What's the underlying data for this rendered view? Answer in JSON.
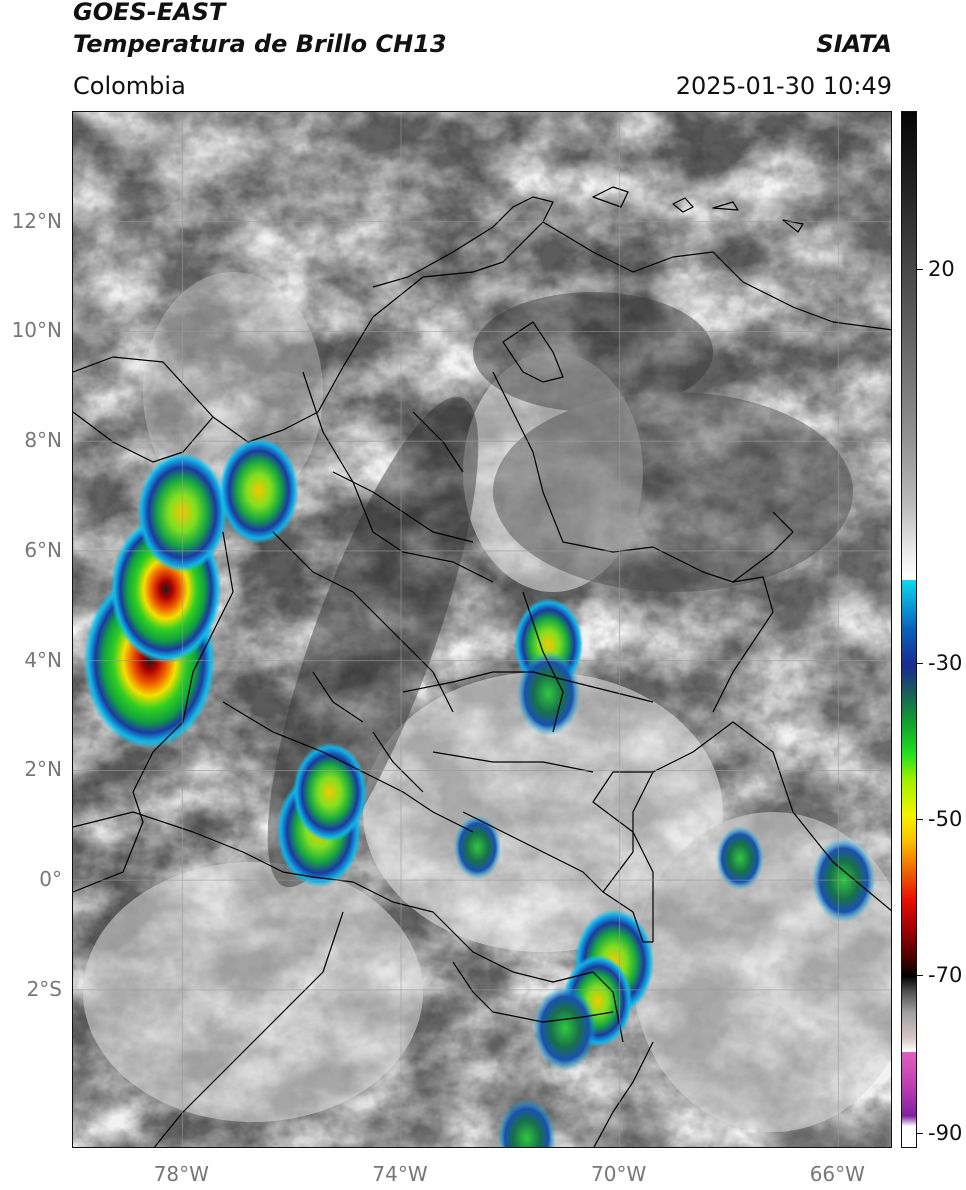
{
  "header": {
    "title_line1": "GOES-EAST",
    "title_line2": "Temperatura de Brillo CH13",
    "region": "Colombia",
    "organization": "SIATA",
    "timestamp": "2025-01-30 10:49"
  },
  "map": {
    "lon_range": [
      -80,
      -65
    ],
    "lat_range": [
      -4.9,
      14.0
    ],
    "lat_ticks": [
      {
        "value": 12,
        "label": "12°N"
      },
      {
        "value": 10,
        "label": "10°N"
      },
      {
        "value": 8,
        "label": "8°N"
      },
      {
        "value": 6,
        "label": "6°N"
      },
      {
        "value": 4,
        "label": "4°N"
      },
      {
        "value": 2,
        "label": "2°N"
      },
      {
        "value": 0,
        "label": "0°"
      },
      {
        "value": -2,
        "label": "2°S"
      }
    ],
    "lon_ticks": [
      {
        "value": -78,
        "label": "78°W"
      },
      {
        "value": -74,
        "label": "74°W"
      },
      {
        "value": -70,
        "label": "70°W"
      },
      {
        "value": -66,
        "label": "66°W"
      }
    ],
    "gridlines": true,
    "storm_cells": [
      {
        "lon": -78.6,
        "lat": 4.0,
        "intensity": 1.0
      },
      {
        "lon": -78.3,
        "lat": 5.3,
        "intensity": 0.8
      },
      {
        "lon": -78.0,
        "lat": 6.7,
        "intensity": 0.6
      },
      {
        "lon": -76.6,
        "lat": 7.1,
        "intensity": 0.5
      },
      {
        "lon": -75.5,
        "lat": 0.9,
        "intensity": 0.55
      },
      {
        "lon": -75.3,
        "lat": 1.6,
        "intensity": 0.45
      },
      {
        "lon": -71.3,
        "lat": 4.3,
        "intensity": 0.4
      },
      {
        "lon": -71.3,
        "lat": 3.4,
        "intensity": 0.35
      },
      {
        "lon": -70.1,
        "lat": -1.5,
        "intensity": 0.5
      },
      {
        "lon": -70.4,
        "lat": -2.2,
        "intensity": 0.4
      },
      {
        "lon": -71.0,
        "lat": -2.7,
        "intensity": 0.35
      },
      {
        "lon": -65.9,
        "lat": 0.0,
        "intensity": 0.35
      },
      {
        "lon": -67.8,
        "lat": 0.4,
        "intensity": 0.2
      },
      {
        "lon": -72.6,
        "lat": 0.6,
        "intensity": 0.2
      },
      {
        "lon": -71.7,
        "lat": -4.7,
        "intensity": 0.3
      }
    ]
  },
  "colorbar": {
    "label_ticks": [
      {
        "value": 20,
        "label": "20"
      },
      {
        "value": -30,
        "label": "-30"
      },
      {
        "value": -50,
        "label": "-50"
      },
      {
        "value": -70,
        "label": "-70"
      },
      {
        "value": -90,
        "label": "-90"
      }
    ],
    "colors": {
      "warm_black": "#050505",
      "warm_white": "#ffffff",
      "cold_cyan": "#10d8f0",
      "cold_blue": "#1a2a90",
      "cold_green": "#20e020",
      "cold_yellow": "#f4f400",
      "cold_red": "#e81000",
      "cold_black": "#000000",
      "cold_magenta": "#c040b0"
    }
  }
}
